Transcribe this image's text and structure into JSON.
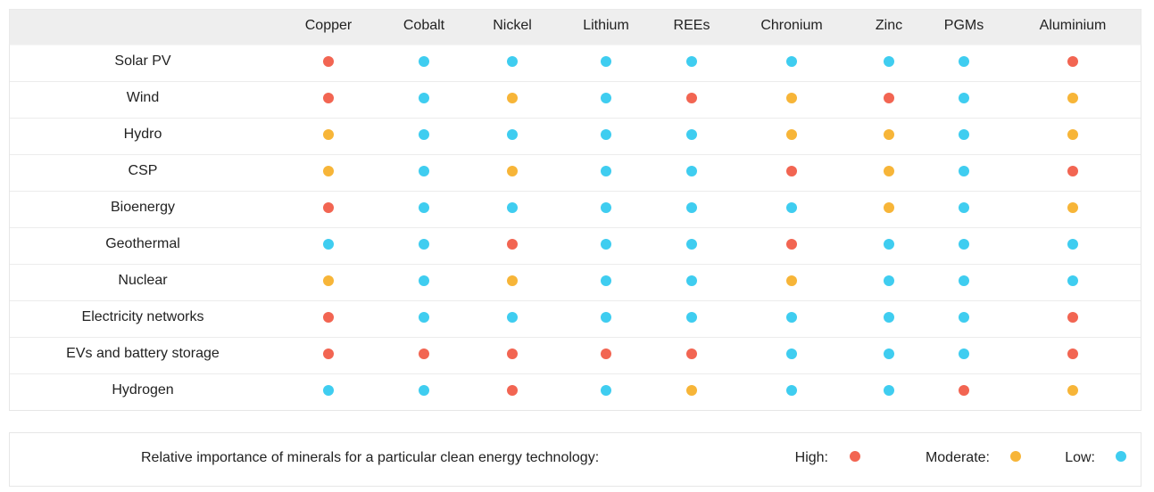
{
  "table": {
    "columns": [
      "Copper",
      "Cobalt",
      "Nickel",
      "Lithium",
      "REEs",
      "Chronium",
      "Zinc",
      "PGMs",
      "Aluminium"
    ],
    "rows": [
      {
        "label": "Solar PV",
        "cells": [
          0,
          2,
          2,
          2,
          2,
          2,
          2,
          2,
          0
        ]
      },
      {
        "label": "Wind",
        "cells": [
          0,
          2,
          1,
          2,
          0,
          1,
          0,
          2,
          1
        ]
      },
      {
        "label": "Hydro",
        "cells": [
          1,
          2,
          2,
          2,
          2,
          1,
          1,
          2,
          1
        ]
      },
      {
        "label": "CSP",
        "cells": [
          1,
          2,
          1,
          2,
          2,
          0,
          1,
          2,
          0
        ]
      },
      {
        "label": "Bioenergy",
        "cells": [
          0,
          2,
          2,
          2,
          2,
          2,
          1,
          2,
          1
        ]
      },
      {
        "label": "Geothermal",
        "cells": [
          2,
          2,
          0,
          2,
          2,
          0,
          2,
          2,
          2
        ]
      },
      {
        "label": "Nuclear",
        "cells": [
          1,
          2,
          1,
          2,
          2,
          1,
          2,
          2,
          2
        ]
      },
      {
        "label": "Electricity networks",
        "cells": [
          0,
          2,
          2,
          2,
          2,
          2,
          2,
          2,
          0
        ]
      },
      {
        "label": "EVs and battery storage",
        "cells": [
          0,
          0,
          0,
          0,
          0,
          2,
          2,
          2,
          0
        ]
      },
      {
        "label": "Hydrogen",
        "cells": [
          2,
          2,
          0,
          2,
          1,
          2,
          2,
          0,
          1
        ]
      }
    ]
  },
  "legend": {
    "title": "Relative importance of minerals for a particular clean energy technology:",
    "items": [
      {
        "label": "High:",
        "color": "#f26552"
      },
      {
        "label": "Moderate:",
        "color": "#f7b538"
      },
      {
        "label": "Low:",
        "color": "#3fcdf0"
      }
    ]
  }
}
